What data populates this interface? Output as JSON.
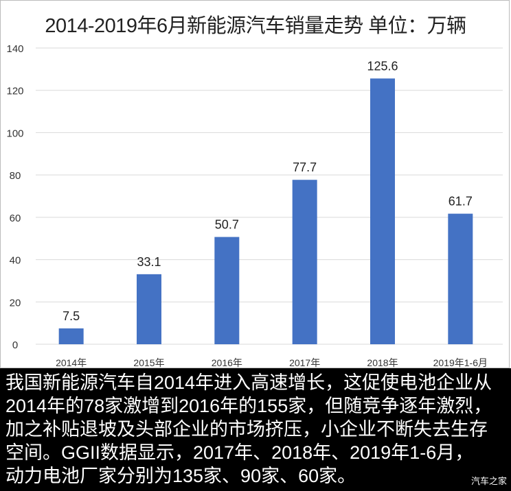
{
  "chart_data": {
    "type": "bar",
    "title": "2014-2019年6月新能源汽车销量走势 单位：万辆",
    "categories": [
      "2014年",
      "2015年",
      "2016年",
      "2017年",
      "2018年",
      "2019年1-6月"
    ],
    "values": [
      7.5,
      33.1,
      50.7,
      77.7,
      125.6,
      61.7
    ],
    "data_labels": [
      "7.5",
      "33.1",
      "50.7",
      "77.7",
      "125.6",
      "61.7"
    ],
    "ylim": [
      0,
      140
    ],
    "yticks": [
      0,
      20,
      40,
      60,
      80,
      100,
      120,
      140
    ],
    "grid": true,
    "bar_color": "#4472C4",
    "xlabel": "",
    "ylabel": ""
  },
  "caption": {
    "lines": [
      "我国新能源汽车自2014年进入高速增长，这促使电池企业从",
      "2014年的78家激增到2016年的155家，但随竞争逐年激烈，",
      "加之补贴退坡及头部企业的市场挤压，小企业不断失去生存",
      "空间。GGII数据显示，2017年、2018年、2019年1-6月，",
      "动力电池厂家分别为135家、90家、60家。"
    ]
  },
  "watermark": "汽车之家"
}
